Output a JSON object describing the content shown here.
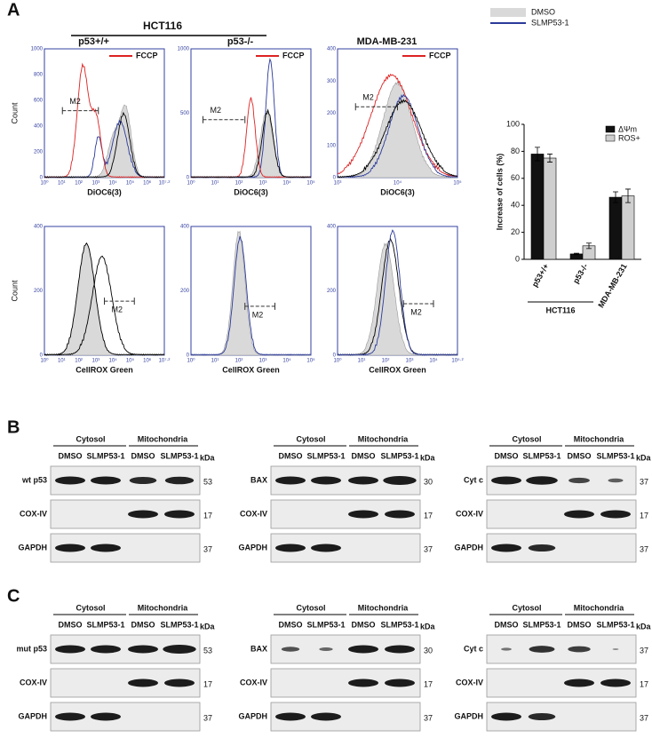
{
  "panel_A": {
    "label": "A",
    "group_label": "HCT116",
    "legend": [
      "DMSO",
      "SLMP53-1"
    ],
    "histograms": [
      {
        "title": "p53+/+",
        "y_label": "Count",
        "x_label": "DiOC6(3)",
        "annotation": "FCCP",
        "gate": "M2",
        "yticks": [
          0,
          200,
          400,
          600,
          800,
          1000
        ],
        "xticks": [
          "10⁰",
          "10¹",
          "10²",
          "10³",
          "10⁴",
          "10⁵",
          "10⁶",
          "10⁷·²"
        ]
      },
      {
        "title": "p53-/-",
        "x_label": "DiOC6(3)",
        "annotation": "FCCP",
        "gate": "M2",
        "yticks": [
          0,
          500,
          1000
        ],
        "xticks": [
          "10⁰",
          "10¹",
          "10²",
          "10³",
          "10⁴",
          "10⁵"
        ]
      },
      {
        "title": "MDA-MB-231",
        "x_label": "DiOC6(3)",
        "annotation": "FCCP",
        "gate": "M2",
        "yticks": [
          0,
          100,
          200,
          300,
          400
        ],
        "xticks": [
          "10³",
          "10⁴",
          "10⁵"
        ]
      },
      {
        "y_label": "Count",
        "x_label": "CellROX Green",
        "gate": "M2",
        "yticks": [
          0,
          200,
          400
        ],
        "xticks": [
          "10⁰",
          "10¹",
          "10²",
          "10³",
          "10⁴",
          "10⁵",
          "10⁶",
          "10⁷·²"
        ]
      },
      {
        "x_label": "CellROX Green",
        "gate": "M2",
        "yticks": [
          0,
          200,
          400
        ],
        "xticks": [
          "10⁰",
          "10¹",
          "10²",
          "10³",
          "10⁴",
          "10⁵"
        ]
      },
      {
        "x_label": "CellROX Green",
        "gate": "M2",
        "yticks": [
          0,
          200,
          400
        ],
        "xticks": [
          "10⁰",
          "10¹",
          "10²",
          "10³",
          "10⁴",
          "10⁵·²"
        ]
      }
    ]
  },
  "chart_data": {
    "type": "bar",
    "y_label": "Increase of cells (%)",
    "group_label": "HCT116",
    "categories": [
      "p53+/+",
      "p53-/-",
      "MDA-MB-231"
    ],
    "series": [
      {
        "name": "ΔΨm",
        "color": "#111111",
        "values": [
          78,
          4,
          46
        ],
        "errors": [
          5,
          0.5,
          4
        ]
      },
      {
        "name": "ROS+",
        "color": "#cfcfcf",
        "values": [
          75,
          10,
          47
        ],
        "errors": [
          3,
          2,
          5
        ]
      }
    ],
    "ylim": [
      0,
      100
    ],
    "yticks": [
      0,
      20,
      40,
      60,
      80,
      100
    ]
  },
  "panel_B": {
    "label": "B",
    "blots": [
      {
        "fractions": [
          "Cytosol",
          "Mitochondria"
        ],
        "lanes": [
          "DMSO",
          "SLMP53-1",
          "DMSO",
          "SLMP53-1"
        ],
        "unit": "kDa",
        "rows": [
          {
            "protein": "wt p53",
            "kda": "53"
          },
          {
            "protein": "COX-IV",
            "kda": "17"
          },
          {
            "protein": "GAPDH",
            "kda": "37"
          }
        ]
      },
      {
        "fractions": [
          "Cytosol",
          "Mitochondria"
        ],
        "lanes": [
          "DMSO",
          "SLMP53-1",
          "DMSO",
          "SLMP53-1"
        ],
        "unit": "kDa",
        "rows": [
          {
            "protein": "BAX",
            "kda": "30"
          },
          {
            "protein": "COX-IV",
            "kda": "17"
          },
          {
            "protein": "GAPDH",
            "kda": "37"
          }
        ]
      },
      {
        "fractions": [
          "Cytosol",
          "Mitochondria"
        ],
        "lanes": [
          "DMSO",
          "SLMP53-1",
          "DMSO",
          "SLMP53-1"
        ],
        "unit": "kDa",
        "rows": [
          {
            "protein": "Cyt c",
            "kda": "37"
          },
          {
            "protein": "COX-IV",
            "kda": "17"
          },
          {
            "protein": "GAPDH",
            "kda": "37"
          }
        ]
      }
    ]
  },
  "panel_C": {
    "label": "C",
    "blots": [
      {
        "fractions": [
          "Cytosol",
          "Mitochondria"
        ],
        "lanes": [
          "DMSO",
          "SLMP53-1",
          "DMSO",
          "SLMP53-1"
        ],
        "unit": "kDa",
        "rows": [
          {
            "protein": "mut p53",
            "kda": "53"
          },
          {
            "protein": "COX-IV",
            "kda": "17"
          },
          {
            "protein": "GAPDH",
            "kda": "37"
          }
        ]
      },
      {
        "fractions": [
          "Cytosol",
          "Mitochondria"
        ],
        "lanes": [
          "DMSO",
          "SLMP53-1",
          "DMSO",
          "SLMP53-1"
        ],
        "unit": "kDa",
        "rows": [
          {
            "protein": "BAX",
            "kda": "30"
          },
          {
            "protein": "COX-IV",
            "kda": "17"
          },
          {
            "protein": "GAPDH",
            "kda": "37"
          }
        ]
      },
      {
        "fractions": [
          "Cytosol",
          "Mitochondria"
        ],
        "lanes": [
          "DMSO",
          "SLMP53-1",
          "DMSO",
          "SLMP53-1"
        ],
        "unit": "kDa",
        "rows": [
          {
            "protein": "Cyt c",
            "kda": "37"
          },
          {
            "protein": "COX-IV",
            "kda": "17"
          },
          {
            "protein": "GAPDH",
            "kda": "37"
          }
        ]
      }
    ]
  }
}
